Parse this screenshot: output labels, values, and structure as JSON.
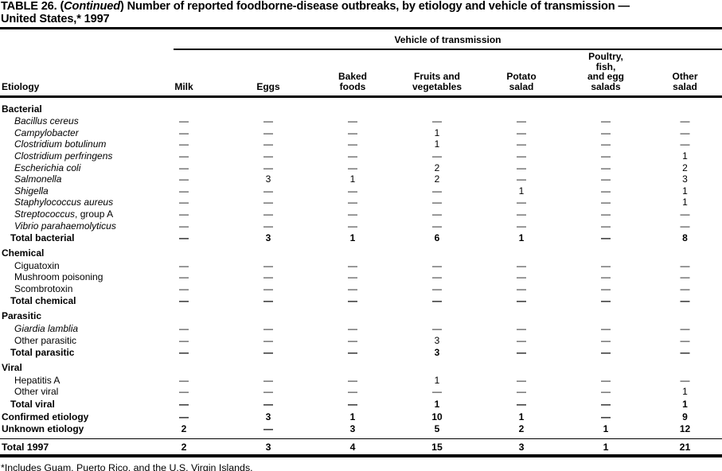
{
  "title": {
    "part1": "TABLE 26. (",
    "italic": "Continued",
    "part2": ") Number of reported foodborne-disease outbreaks, by etiology and vehicle of transmission —",
    "line2": "United States,* 1997"
  },
  "table": {
    "spanner": "Vehicle of transmission",
    "etiology_header": "Etiology",
    "columns": [
      {
        "lines": [
          "Milk"
        ]
      },
      {
        "lines": [
          "Eggs"
        ]
      },
      {
        "lines": [
          "Baked",
          "foods"
        ]
      },
      {
        "lines": [
          "Fruits and",
          "vegetables"
        ]
      },
      {
        "lines": [
          "Potato",
          "salad"
        ]
      },
      {
        "lines": [
          "Poultry,",
          "fish,",
          "and egg",
          "salads"
        ]
      },
      {
        "lines": [
          "Other",
          "salad"
        ]
      }
    ],
    "sections": [
      {
        "header": "Bacterial",
        "rows": [
          {
            "label": "Bacillus cereus",
            "italic": true,
            "values": [
              "—",
              "—",
              "—",
              "—",
              "—",
              "—",
              "—"
            ]
          },
          {
            "label": "Campylobacter",
            "italic": true,
            "values": [
              "—",
              "—",
              "—",
              "1",
              "—",
              "—",
              "—"
            ]
          },
          {
            "label": "Clostridium botulinum",
            "italic": true,
            "values": [
              "—",
              "—",
              "—",
              "1",
              "—",
              "—",
              "—"
            ]
          },
          {
            "label": "Clostridium perfringens",
            "italic": true,
            "values": [
              "—",
              "—",
              "—",
              "—",
              "—",
              "—",
              "1"
            ]
          },
          {
            "label": "Escherichia coli",
            "italic": true,
            "values": [
              "—",
              "—",
              "—",
              "2",
              "—",
              "—",
              "2"
            ]
          },
          {
            "label": "Salmonella",
            "italic": true,
            "values": [
              "—",
              "3",
              "1",
              "2",
              "—",
              "—",
              "3"
            ]
          },
          {
            "label": "Shigella",
            "italic": true,
            "values": [
              "—",
              "—",
              "—",
              "—",
              "1",
              "—",
              "1"
            ]
          },
          {
            "label": "Staphylococcus aureus",
            "italic": true,
            "values": [
              "—",
              "—",
              "—",
              "—",
              "—",
              "—",
              "1"
            ]
          },
          {
            "label": "Streptococcus",
            "suffix": ", group A",
            "italic": true,
            "values": [
              "—",
              "—",
              "—",
              "—",
              "—",
              "—",
              "—"
            ]
          },
          {
            "label": "Vibrio parahaemolyticus",
            "italic": true,
            "values": [
              "—",
              "—",
              "—",
              "—",
              "—",
              "—",
              "—"
            ]
          }
        ],
        "total": {
          "label": "Total bacterial",
          "values": [
            "—",
            "3",
            "1",
            "6",
            "1",
            "—",
            "8"
          ]
        }
      },
      {
        "header": "Chemical",
        "rows": [
          {
            "label": "Ciguatoxin",
            "italic": false,
            "values": [
              "—",
              "—",
              "—",
              "—",
              "—",
              "—",
              "—"
            ]
          },
          {
            "label": "Mushroom poisoning",
            "italic": false,
            "values": [
              "—",
              "—",
              "—",
              "—",
              "—",
              "—",
              "—"
            ]
          },
          {
            "label": "Scombrotoxin",
            "italic": false,
            "values": [
              "—",
              "—",
              "—",
              "—",
              "—",
              "—",
              "—"
            ]
          }
        ],
        "total": {
          "label": "Total chemical",
          "values": [
            "—",
            "—",
            "—",
            "—",
            "—",
            "—",
            "—"
          ]
        }
      },
      {
        "header": "Parasitic",
        "rows": [
          {
            "label": "Giardia lamblia",
            "italic": true,
            "values": [
              "—",
              "—",
              "—",
              "—",
              "—",
              "—",
              "—"
            ]
          },
          {
            "label": "Other parasitic",
            "italic": false,
            "values": [
              "—",
              "—",
              "—",
              "3",
              "—",
              "—",
              "—"
            ]
          }
        ],
        "total": {
          "label": "Total parasitic",
          "values": [
            "—",
            "—",
            "—",
            "3",
            "—",
            "—",
            "—"
          ]
        }
      },
      {
        "header": "Viral",
        "rows": [
          {
            "label": "Hepatitis A",
            "italic": false,
            "values": [
              "—",
              "—",
              "—",
              "1",
              "—",
              "—",
              "—"
            ]
          },
          {
            "label": "Other viral",
            "italic": false,
            "values": [
              "—",
              "—",
              "—",
              "—",
              "—",
              "—",
              "1"
            ]
          }
        ],
        "total": {
          "label": "Total viral",
          "values": [
            "—",
            "—",
            "—",
            "1",
            "—",
            "—",
            "1"
          ]
        }
      }
    ],
    "summary_rows": [
      {
        "label": "Confirmed etiology",
        "values": [
          "—",
          "3",
          "1",
          "10",
          "1",
          "—",
          "9"
        ]
      },
      {
        "label": "Unknown etiology",
        "values": [
          "2",
          "—",
          "3",
          "5",
          "2",
          "1",
          "12"
        ]
      }
    ],
    "grand_total": {
      "label": "Total 1997",
      "values": [
        "2",
        "3",
        "4",
        "15",
        "3",
        "1",
        "21"
      ]
    }
  },
  "footnote": "*Includes Guam, Puerto Rico, and the U.S. Virgin Islands."
}
